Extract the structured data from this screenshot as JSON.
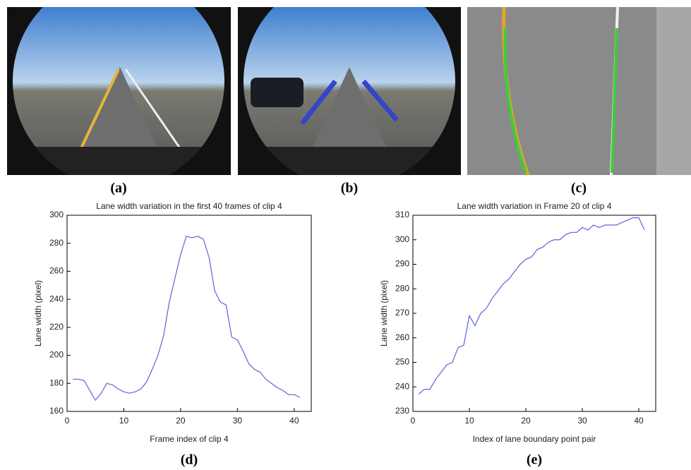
{
  "figure": {
    "panel_labels": [
      "(a)",
      "(b)",
      "(c)",
      "(d)",
      "(e)"
    ]
  },
  "chart_data": [
    {
      "type": "line",
      "title": "Lane width variation in the first 40 frames of clip 4",
      "x_label": "Frame index of clip 4",
      "y_label": "Lane width (pixel)",
      "x": [
        1,
        2,
        3,
        4,
        5,
        6,
        7,
        8,
        9,
        10,
        11,
        12,
        13,
        14,
        15,
        16,
        17,
        18,
        19,
        20,
        21,
        22,
        23,
        24,
        25,
        26,
        27,
        28,
        29,
        30,
        31,
        32,
        33,
        34,
        35,
        36,
        37,
        38,
        39,
        40,
        41
      ],
      "series": [
        {
          "color": "#5b63d6",
          "values": [
            183,
            183,
            182,
            175,
            168,
            173,
            180,
            179,
            176,
            174,
            173,
            174,
            176,
            181,
            190,
            200,
            214,
            238,
            255,
            272,
            285,
            284,
            285,
            283,
            270,
            246,
            238,
            236,
            213,
            211,
            203,
            194,
            190,
            188,
            183,
            180,
            177,
            175,
            172,
            172,
            170
          ]
        }
      ],
      "xlim": [
        0,
        43
      ],
      "xticks": [
        0,
        10,
        20,
        30,
        40
      ],
      "ylim": [
        160,
        300
      ],
      "yticks": [
        160,
        180,
        200,
        220,
        240,
        260,
        280,
        300
      ]
    },
    {
      "type": "line",
      "title": "Lane width variation in Frame 20 of clip 4",
      "x_label": "Index of lane boundary point pair",
      "y_label": "Lane width (pixel)",
      "x": [
        1,
        2,
        3,
        4,
        5,
        6,
        7,
        8,
        9,
        10,
        11,
        12,
        13,
        14,
        15,
        16,
        17,
        18,
        19,
        20,
        21,
        22,
        23,
        24,
        25,
        26,
        27,
        28,
        29,
        30,
        31,
        32,
        33,
        34,
        35,
        36,
        37,
        38,
        39,
        40,
        41
      ],
      "series": [
        {
          "color": "#5b63d6",
          "values": [
            237,
            239,
            239,
            243,
            246,
            249,
            250,
            256,
            257,
            269,
            265,
            270,
            272,
            276,
            279,
            282,
            284,
            287,
            290,
            292,
            293,
            296,
            297,
            299,
            300,
            300,
            302,
            303,
            303,
            305,
            304,
            306,
            305,
            306,
            306,
            306,
            307,
            308,
            309,
            309,
            304
          ]
        }
      ],
      "xlim": [
        0,
        43
      ],
      "xticks": [
        0,
        10,
        20,
        30,
        40
      ],
      "ylim": [
        230,
        310
      ],
      "yticks": [
        230,
        240,
        250,
        260,
        270,
        280,
        290,
        300,
        310
      ]
    }
  ]
}
